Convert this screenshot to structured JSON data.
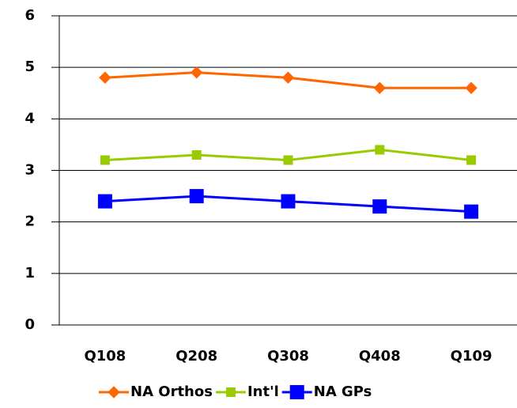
{
  "chart_data": {
    "type": "line",
    "categories": [
      "Q108",
      "Q208",
      "Q308",
      "Q408",
      "Q109"
    ],
    "series": [
      {
        "name": "NA Orthos",
        "color": "#ff6600",
        "marker": "diamond",
        "values": [
          4.8,
          4.9,
          4.8,
          4.6,
          4.6
        ]
      },
      {
        "name": "Int'l",
        "color": "#99cc00",
        "marker": "square",
        "values": [
          3.2,
          3.3,
          3.2,
          3.4,
          3.2
        ]
      },
      {
        "name": "NA GPs",
        "color": "#0000ff",
        "marker": "big-square",
        "values": [
          2.4,
          2.5,
          2.4,
          2.3,
          2.2
        ]
      }
    ],
    "ylim": [
      0,
      6
    ],
    "yticks": [
      0,
      1,
      2,
      3,
      4,
      5,
      6
    ],
    "grid": true,
    "legend": "bottom"
  }
}
